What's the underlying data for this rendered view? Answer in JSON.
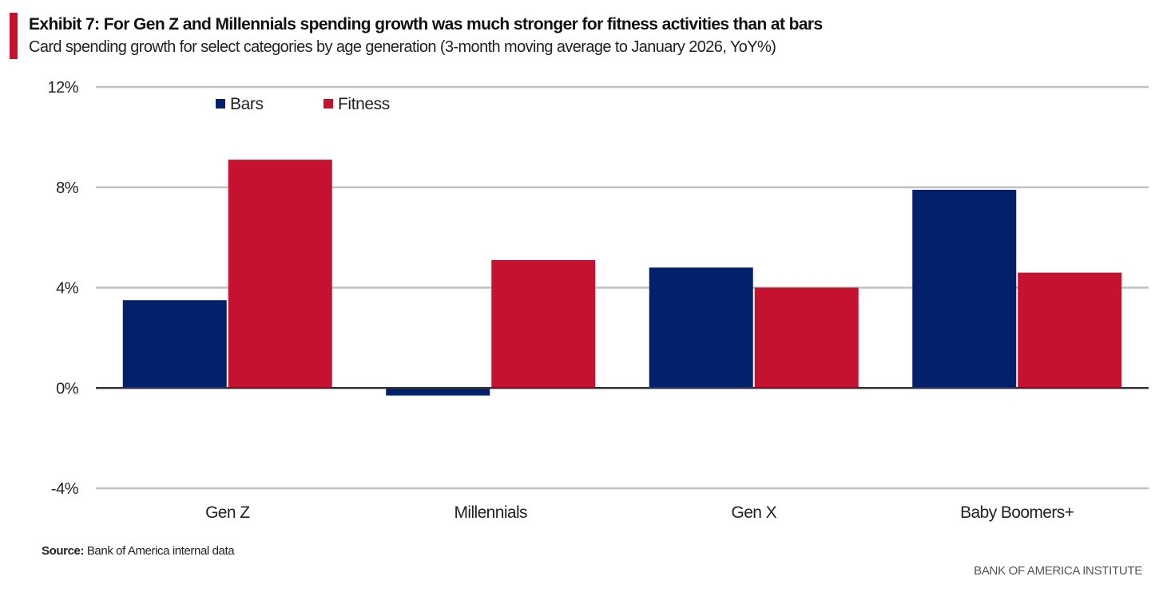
{
  "header": {
    "title": "Exhibit 7: For Gen Z and Millennials spending growth was much stronger for fitness activities than at bars",
    "subtitle": "Card spending growth for select categories by age generation (3-month moving average to January 2026, YoY%)"
  },
  "footer": {
    "source_label": "Source:",
    "source_text": " Bank of America internal data",
    "brand": "BANK OF AMERICA INSTITUTE"
  },
  "colors": {
    "bars": "#03216a",
    "fitness": "#c41230",
    "accent": "#c41230",
    "gridline": "#c0c0c0",
    "zero_line": "#333333"
  },
  "chart_data": {
    "type": "bar",
    "title": "Exhibit 7: For Gen Z and Millennials spending growth was much stronger for fitness activities than at bars",
    "subtitle": "Card spending growth for select categories by age generation (3-month moving average to January 2026, YoY%)",
    "xlabel": "",
    "ylabel": "",
    "categories": [
      "Gen Z",
      "Millennials",
      "Gen X",
      "Baby Boomers+"
    ],
    "series": [
      {
        "name": "Bars",
        "color": "#03216a",
        "values": [
          3.5,
          -0.3,
          4.8,
          7.9
        ]
      },
      {
        "name": "Fitness",
        "color": "#c41230",
        "values": [
          9.1,
          5.1,
          4.0,
          4.6
        ]
      }
    ],
    "ylim": [
      -4,
      12
    ],
    "yticks": [
      -4,
      0,
      4,
      8,
      12
    ],
    "ytick_labels": [
      "-4%",
      "0%",
      "4%",
      "8%",
      "12%"
    ],
    "grid": true,
    "legend_position": "top-left"
  }
}
